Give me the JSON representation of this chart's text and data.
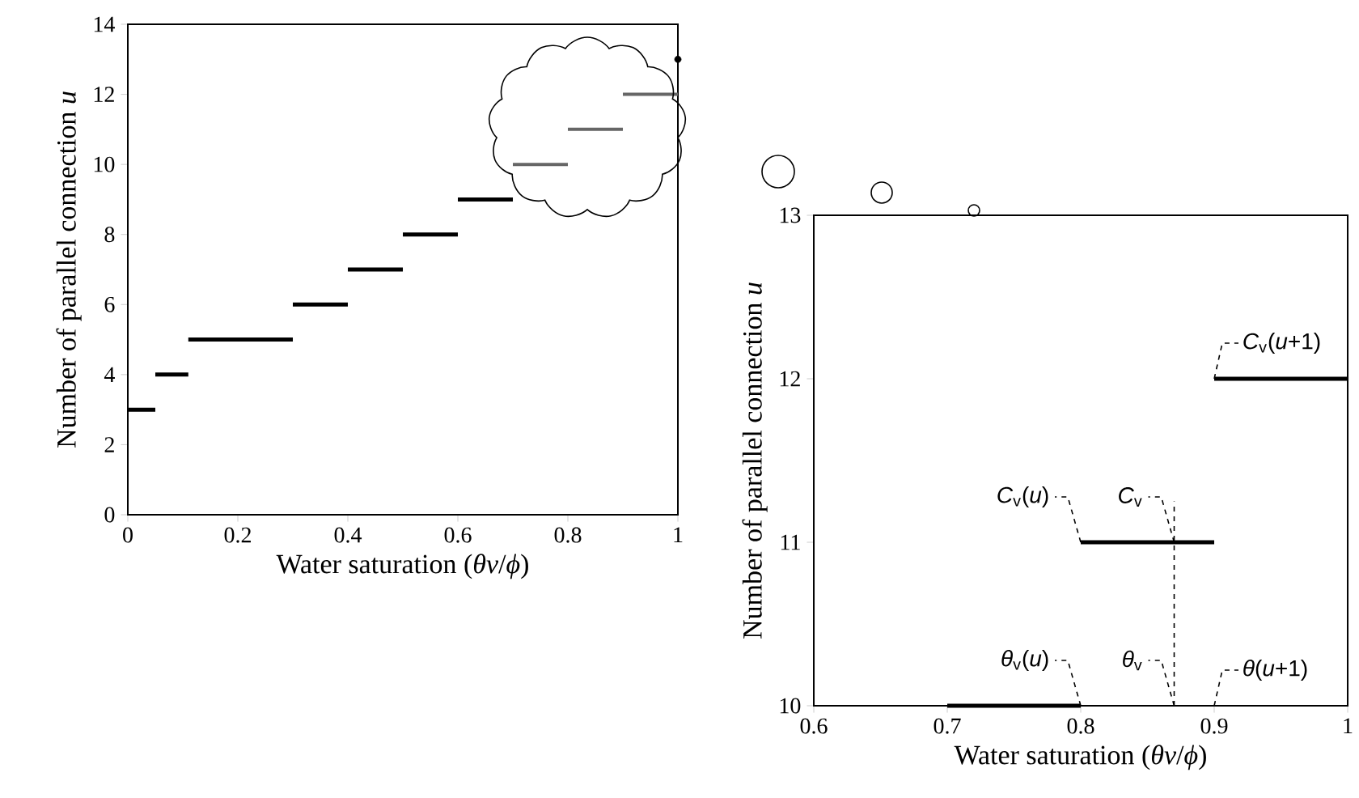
{
  "chart_data": [
    {
      "type": "line",
      "xlabel": "Water saturation (*θv*/*ϕ*)",
      "ylabel": "Number of parallel connection *u*",
      "xlim": [
        0,
        1
      ],
      "xticks": [
        0,
        0.2,
        0.4,
        0.6,
        0.8,
        1
      ],
      "ylim": [
        0,
        14
      ],
      "yticks": [
        0,
        2,
        4,
        6,
        8,
        10,
        12,
        14
      ],
      "grid": false,
      "series": [
        {
          "color": "#000000",
          "x": [
            0,
            0.05
          ],
          "values": [
            3,
            3
          ]
        },
        {
          "color": "#000000",
          "x": [
            0.05,
            0.11
          ],
          "values": [
            4,
            4
          ]
        },
        {
          "color": "#000000",
          "x": [
            0.11,
            0.3
          ],
          "values": [
            5,
            5
          ]
        },
        {
          "color": "#000000",
          "x": [
            0.3,
            0.4
          ],
          "values": [
            6,
            6
          ]
        },
        {
          "color": "#000000",
          "x": [
            0.4,
            0.5
          ],
          "values": [
            7,
            7
          ]
        },
        {
          "color": "#000000",
          "x": [
            0.5,
            0.6
          ],
          "values": [
            8,
            8
          ]
        },
        {
          "color": "#000000",
          "x": [
            0.6,
            0.7
          ],
          "values": [
            9,
            9
          ]
        },
        {
          "color": "#666666",
          "x": [
            0.7,
            0.8
          ],
          "values": [
            10,
            10
          ]
        },
        {
          "color": "#666666",
          "x": [
            0.8,
            0.9
          ],
          "values": [
            11,
            11
          ]
        },
        {
          "color": "#666666",
          "x": [
            0.9,
            1
          ],
          "values": [
            12,
            12
          ]
        },
        {
          "type": "scatter",
          "color": "#000000",
          "x": [
            1
          ],
          "values": [
            13
          ]
        }
      ]
    },
    {
      "type": "line",
      "xlabel": "Water saturation (*θv*/*ϕ*)",
      "ylabel": "Number of parallel connection *u*",
      "xlim": [
        0.6,
        1
      ],
      "xticks": [
        0.6,
        0.7,
        0.8,
        0.9,
        1
      ],
      "ylim": [
        10,
        13
      ],
      "yticks": [
        10,
        11,
        12,
        13
      ],
      "grid": false,
      "series": [
        {
          "color": "#000000",
          "x": [
            0.7,
            0.8
          ],
          "values": [
            10,
            10
          ]
        },
        {
          "color": "#000000",
          "x": [
            0.8,
            0.9
          ],
          "values": [
            11,
            11
          ]
        },
        {
          "color": "#000000",
          "x": [
            0.9,
            1
          ],
          "values": [
            12,
            12
          ]
        },
        {
          "color": "#000000",
          "line_style": "dashed",
          "x": [
            0.87,
            0.87
          ],
          "values": [
            10,
            11.25
          ]
        }
      ],
      "annotations": [
        {
          "text": "*C*$_{v}$(*u*)",
          "x": 0.8,
          "y": 11
        },
        {
          "text": "*C*$_{v}$",
          "x": 0.87,
          "y": 11
        },
        {
          "text": "*θ*$_{v}$",
          "x": 0.87,
          "y": 10
        },
        {
          "text": "*θ*$_{v}$(*u*)",
          "x": 0.8,
          "y": 10
        },
        "*θ*(*u*+1)",
        {
          "text": "*C*$_{v}$(*u*+1)",
          "x": 0.9,
          "y": 12
        }
      ]
    }
  ]
}
